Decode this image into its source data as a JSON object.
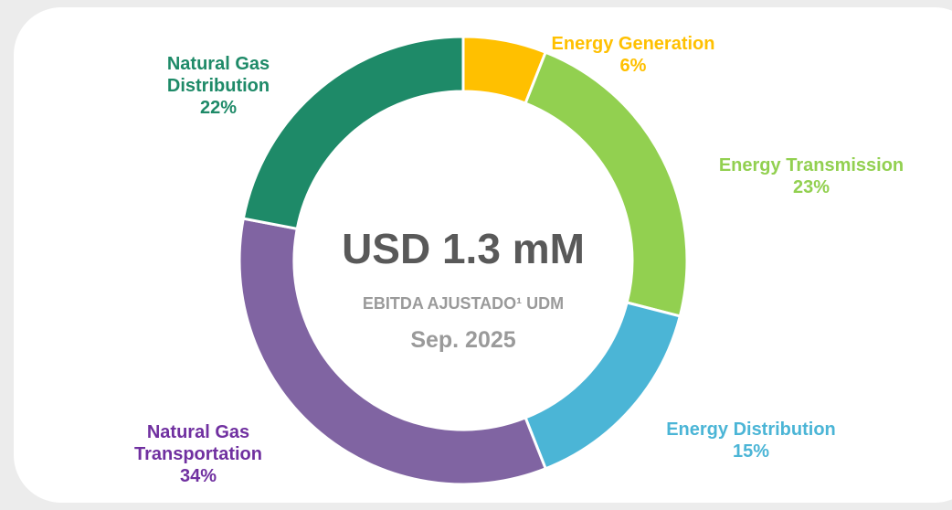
{
  "chart_data": {
    "type": "donut",
    "categories": [
      "Energy Generation",
      "Energy Transmission",
      "Energy Distribution",
      "Natural Gas Transportation",
      "Natural Gas Distribution"
    ],
    "values": [
      6,
      23,
      15,
      34,
      22
    ],
    "value_labels": [
      "6%",
      "23%",
      "15%",
      "34%",
      "22%"
    ],
    "colors": [
      "#ffc000",
      "#92d050",
      "#4bb5d6",
      "#8064a2",
      "#1e8a68"
    ],
    "label_colors": [
      "#ffc000",
      "#92d050",
      "#4bb5d6",
      "#7030a0",
      "#1e8a68"
    ],
    "center_title": "USD 1.3 mM",
    "center_subtitle": "EBITDA AJUSTADO¹ UDM",
    "center_date": "Sep. 2025"
  }
}
